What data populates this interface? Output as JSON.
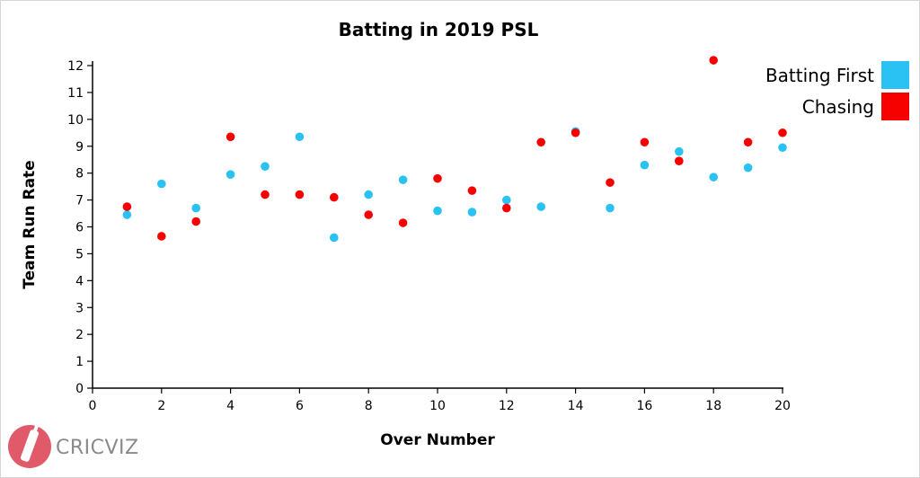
{
  "chart_data": {
    "type": "scatter",
    "title": "Batting in 2019 PSL",
    "xlabel": "Over Number",
    "ylabel": "Team Run Rate",
    "xlim": [
      0,
      20
    ],
    "ylim": [
      0,
      12
    ],
    "xticks": [
      0,
      2,
      4,
      6,
      8,
      10,
      12,
      14,
      16,
      18,
      20
    ],
    "yticks": [
      0,
      1,
      2,
      3,
      4,
      5,
      6,
      7,
      8,
      9,
      10,
      11,
      12
    ],
    "grid": false,
    "legend_position": "top-right",
    "series": [
      {
        "name": "Batting First",
        "color": "#29c2f2",
        "x": [
          1,
          2,
          3,
          4,
          5,
          6,
          7,
          8,
          9,
          10,
          11,
          12,
          13,
          14,
          15,
          16,
          17,
          18,
          19,
          20
        ],
        "y": [
          6.45,
          7.6,
          6.7,
          7.95,
          8.25,
          9.35,
          5.6,
          7.2,
          7.75,
          6.6,
          6.55,
          7.0,
          6.75,
          9.55,
          6.7,
          8.3,
          8.8,
          7.85,
          8.2,
          8.95
        ]
      },
      {
        "name": "Chasing",
        "color": "#f70000",
        "x": [
          1,
          2,
          3,
          4,
          5,
          6,
          7,
          8,
          9,
          10,
          11,
          12,
          13,
          14,
          15,
          16,
          17,
          18,
          19,
          20
        ],
        "y": [
          6.75,
          5.65,
          6.2,
          9.35,
          7.2,
          7.2,
          7.1,
          6.45,
          6.15,
          7.8,
          7.35,
          6.7,
          9.15,
          9.5,
          7.65,
          9.15,
          8.45,
          12.2,
          9.15,
          9.5
        ]
      }
    ]
  },
  "branding": {
    "logo_text": "CRICVIZ",
    "logo_color": "#e05a6a"
  }
}
